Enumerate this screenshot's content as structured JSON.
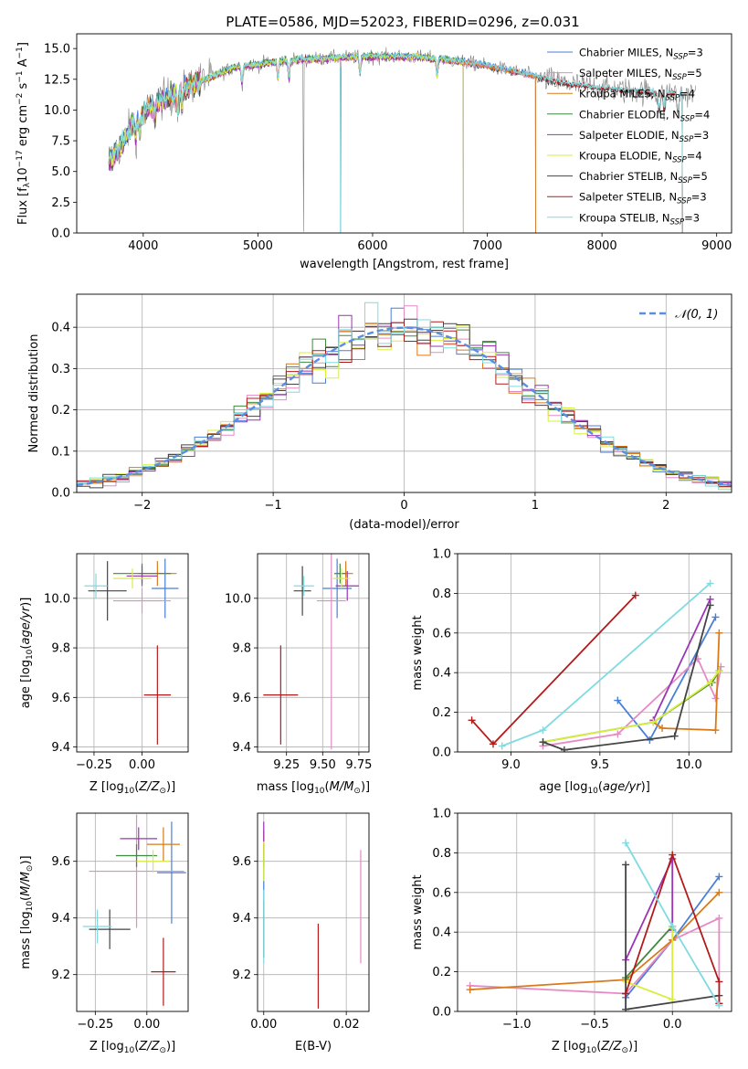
{
  "figure_title": "PLATE=0586, MJD=52023, FIBERID=0296, z=0.031",
  "colors": {
    "Chabrier MILES": "#4a7fd8",
    "Salpeter MILES": "#e68ac6",
    "Kroupa MILES": "#d97a1a",
    "Chabrier ELODIE": "#3f8a3f",
    "Salpeter ELODIE": "#9b34b5",
    "Kroupa ELODIE": "#d9ee3c",
    "Chabrier STELIB": "#444444",
    "Salpeter STELIB": "#b31b1b",
    "Kroupa STELIB": "#7fdbe0",
    "data": "#808080",
    "normal": "#5b8ee0"
  },
  "chart_data": [
    {
      "id": "spectrum",
      "type": "line",
      "title": "PLATE=0586, MJD=52023, FIBERID=0296, z=0.031",
      "xlabel": "wavelength [Angstrom, rest frame]",
      "ylabel": "Flux [f_λ10^-17 erg cm^-2 s^-1 A^-1]",
      "xlim": [
        3420,
        9130
      ],
      "ylim": [
        0,
        16.2
      ],
      "xticks": [
        4000,
        5000,
        6000,
        7000,
        8000,
        9000
      ],
      "yticks": [
        0.0,
        2.5,
        5.0,
        7.5,
        10.0,
        12.5,
        15.0
      ],
      "xtick_labels": [
        "4000",
        "5000",
        "6000",
        "7000",
        "8000",
        "9000"
      ],
      "ytick_labels": [
        "0.0",
        "2.5",
        "5.0",
        "7.5",
        "10.0",
        "12.5",
        "15.0"
      ],
      "legend_position": "upper right",
      "legend": [
        {
          "model": "Chabrier MILES",
          "label": "Chabrier MILES, N",
          "sub": "SSP",
          "suffix": "=3"
        },
        {
          "model": "Salpeter MILES",
          "label": "Salpeter MILES, N",
          "sub": "SSP",
          "suffix": "=5"
        },
        {
          "model": "Kroupa MILES",
          "label": "Kroupa MILES, N",
          "sub": "SSP",
          "suffix": "=4"
        },
        {
          "model": "Chabrier ELODIE",
          "label": "Chabrier ELODIE, N",
          "sub": "SSP",
          "suffix": "=4"
        },
        {
          "model": "Salpeter ELODIE",
          "label": "Salpeter ELODIE, N",
          "sub": "SSP",
          "suffix": "=3"
        },
        {
          "model": "Kroupa ELODIE",
          "label": "Kroupa ELODIE, N",
          "sub": "SSP",
          "suffix": "=4"
        },
        {
          "model": "Chabrier STELIB",
          "label": "Chabrier STELIB, N",
          "sub": "SSP",
          "suffix": "=5"
        },
        {
          "model": "Salpeter STELIB",
          "label": "Salpeter STELIB, N",
          "sub": "SSP",
          "suffix": "=3"
        },
        {
          "model": "Kroupa STELIB",
          "label": "Kroupa STELIB, N",
          "sub": "SSP",
          "suffix": "=3"
        }
      ],
      "continuum": {
        "x": [
          3700,
          3800,
          3900,
          4000,
          4100,
          4200,
          4300,
          4400,
          4500,
          4600,
          4700,
          4800,
          5000,
          5200,
          5400,
          5600,
          5800,
          6000,
          6200,
          6400,
          6600,
          6800,
          7000,
          7200,
          7400,
          7600,
          7800,
          8000,
          8200,
          8400,
          8600,
          8800
        ],
        "y": [
          5.8,
          7.0,
          8.8,
          9.6,
          10.6,
          11.0,
          11.3,
          12.1,
          12.3,
          12.7,
          13.1,
          13.5,
          13.7,
          14.0,
          14.1,
          14.2,
          14.3,
          14.35,
          14.35,
          14.3,
          14.15,
          13.9,
          13.6,
          13.2,
          12.8,
          12.3,
          12.0,
          11.8,
          11.6,
          11.5,
          11.4,
          11.3
        ]
      },
      "model_ranges": {
        "Kroupa MILES": [
          3700,
          7420
        ],
        "Salpeter MILES": [
          3700,
          7420
        ],
        "Chabrier MILES": [
          3700,
          7420
        ],
        "Chabrier ELODIE": [
          3700,
          6790
        ],
        "Salpeter ELODIE": [
          3700,
          6790
        ],
        "Kroupa ELODIE": [
          3700,
          6790
        ],
        "Chabrier STELIB": [
          3700,
          8700
        ],
        "Salpeter STELIB": [
          3700,
          8700
        ],
        "Kroupa STELIB": [
          3700,
          8700
        ]
      }
    },
    {
      "id": "residuals",
      "type": "histogram",
      "xlabel": "(data-model)/error",
      "ylabel": "Normed distribution",
      "xlim": [
        -2.5,
        2.5
      ],
      "ylim": [
        0,
        0.48
      ],
      "xticks": [
        -2,
        -1,
        0,
        1,
        2
      ],
      "yticks": [
        0.0,
        0.1,
        0.2,
        0.3,
        0.4
      ],
      "xtick_labels": [
        "−2",
        "−1",
        "0",
        "1",
        "2"
      ],
      "ytick_labels": [
        "0.0",
        "0.1",
        "0.2",
        "0.3",
        "0.4"
      ],
      "bins": [
        -2.5,
        2.5,
        50
      ],
      "legend_label": "𝒩(0, 1)",
      "legend_position": "upper right",
      "grid": true
    },
    {
      "id": "age_vs_Z",
      "type": "errorbar",
      "xlabel": "Z [log10(Z/Z☉)]",
      "ylabel": "age  [log10(age/yr)]",
      "xlim": [
        -0.34,
        0.24
      ],
      "ylim": [
        9.38,
        10.18
      ],
      "xticks": [
        -0.25,
        0.0
      ],
      "yticks": [
        9.4,
        9.6,
        9.8,
        10.0
      ],
      "xtick_labels": [
        "−0.25",
        "0.00"
      ],
      "ytick_labels": [
        "9.4",
        "9.6",
        "9.8",
        "10.0"
      ],
      "points": [
        {
          "model": "Chabrier MILES",
          "x": 0.12,
          "xerr": 0.07,
          "y": 10.04,
          "yerr": 0.12
        },
        {
          "model": "Salpeter MILES",
          "x": 0.0,
          "xerr": 0.15,
          "y": 9.99,
          "yerr": 0.05
        },
        {
          "model": "Kroupa MILES",
          "x": 0.08,
          "xerr": 0.1,
          "y": 10.1,
          "yerr": 0.05
        },
        {
          "model": "Chabrier ELODIE",
          "x": 0.0,
          "xerr": 0.15,
          "y": 10.1,
          "yerr": 0.04
        },
        {
          "model": "Salpeter ELODIE",
          "x": 0.0,
          "xerr": 0.08,
          "y": 10.09,
          "yerr": 0.04
        },
        {
          "model": "Kroupa ELODIE",
          "x": -0.05,
          "xerr": 0.1,
          "y": 10.08,
          "yerr": 0.04
        },
        {
          "model": "Chabrier STELIB",
          "x": -0.18,
          "xerr": 0.1,
          "y": 10.03,
          "yerr": 0.12
        },
        {
          "model": "Salpeter STELIB",
          "x": 0.08,
          "xerr": 0.07,
          "y": 9.61,
          "yerr": 0.2
        },
        {
          "model": "Kroupa STELIB",
          "x": -0.24,
          "xerr": 0.06,
          "y": 10.05,
          "yerr": 0.05
        }
      ]
    },
    {
      "id": "age_vs_mass",
      "type": "errorbar",
      "xlabel": "mass [log10(M/M☉)]",
      "ylabel": "",
      "xlim": [
        9.05,
        9.82
      ],
      "ylim": [
        9.38,
        10.18
      ],
      "xticks": [
        9.25,
        9.5,
        9.75
      ],
      "yticks": [
        9.4,
        9.6,
        9.8,
        10.0
      ],
      "xtick_labels": [
        "9.25",
        "9.50",
        "9.75"
      ],
      "ytick_labels": [
        "9.4",
        "9.6",
        "9.8",
        "10.0"
      ],
      "points": [
        {
          "model": "Chabrier MILES",
          "x": 9.6,
          "xerr": 0.1,
          "y": 10.04,
          "yerr": 0.12
        },
        {
          "model": "Salpeter MILES",
          "x": 9.56,
          "xerr": 0.1,
          "y": 9.99,
          "yerr": 0.6
        },
        {
          "model": "Kroupa MILES",
          "x": 9.66,
          "xerr": 0.05,
          "y": 10.1,
          "yerr": 0.05
        },
        {
          "model": "Chabrier ELODIE",
          "x": 9.62,
          "xerr": 0.04,
          "y": 10.1,
          "yerr": 0.04
        },
        {
          "model": "Salpeter ELODIE",
          "x": 9.67,
          "xerr": 0.08,
          "y": 10.05,
          "yerr": 0.06
        },
        {
          "model": "Kroupa ELODIE",
          "x": 9.63,
          "xerr": 0.06,
          "y": 10.08,
          "yerr": 0.04
        },
        {
          "model": "Chabrier STELIB",
          "x": 9.36,
          "xerr": 0.06,
          "y": 10.03,
          "yerr": 0.1
        },
        {
          "model": "Salpeter STELIB",
          "x": 9.21,
          "xerr": 0.12,
          "y": 9.61,
          "yerr": 0.2
        },
        {
          "model": "Kroupa STELIB",
          "x": 9.37,
          "xerr": 0.07,
          "y": 10.05,
          "yerr": 0.04
        }
      ]
    },
    {
      "id": "weight_vs_age",
      "type": "line",
      "xlabel": "age  [log10(age/yr)]",
      "ylabel": "mass weight",
      "xlim": [
        8.7,
        10.24
      ],
      "ylim": [
        0,
        1.0
      ],
      "xticks": [
        9.0,
        9.5,
        10.0
      ],
      "yticks": [
        0.0,
        0.2,
        0.4,
        0.6,
        0.8,
        1.0
      ],
      "xtick_labels": [
        "9.0",
        "9.5",
        "10.0"
      ],
      "ytick_labels": [
        "0.0",
        "0.2",
        "0.4",
        "0.6",
        "0.8",
        "1.0"
      ],
      "grid": true,
      "series": [
        {
          "model": "Chabrier MILES",
          "x": [
            9.6,
            9.78,
            10.15
          ],
          "y": [
            0.26,
            0.06,
            0.68
          ]
        },
        {
          "model": "Salpeter MILES",
          "x": [
            9.18,
            9.6,
            10.05,
            10.15,
            10.18
          ],
          "y": [
            0.03,
            0.09,
            0.47,
            0.27,
            0.43
          ]
        },
        {
          "model": "Kroupa MILES",
          "x": [
            9.8,
            9.85,
            10.15,
            10.17
          ],
          "y": [
            0.15,
            0.12,
            0.11,
            0.6
          ]
        },
        {
          "model": "Chabrier ELODIE",
          "x": [
            9.18,
            9.8,
            10.13,
            10.17
          ],
          "y": [
            0.05,
            0.15,
            0.35,
            0.41
          ]
        },
        {
          "model": "Salpeter ELODIE",
          "x": [
            9.8,
            10.12
          ],
          "y": [
            0.16,
            0.77
          ]
        },
        {
          "model": "Kroupa ELODIE",
          "x": [
            9.18,
            9.8,
            10.12,
            10.17
          ],
          "y": [
            0.05,
            0.15,
            0.35,
            0.41
          ]
        },
        {
          "model": "Chabrier STELIB",
          "x": [
            9.18,
            9.3,
            9.92,
            10.12
          ],
          "y": [
            0.05,
            0.01,
            0.08,
            0.74
          ]
        },
        {
          "model": "Salpeter STELIB",
          "x": [
            8.78,
            8.9,
            9.7
          ],
          "y": [
            0.16,
            0.04,
            0.79
          ]
        },
        {
          "model": "Kroupa STELIB",
          "x": [
            8.95,
            9.18,
            10.12
          ],
          "y": [
            0.03,
            0.11,
            0.85
          ]
        }
      ]
    },
    {
      "id": "mass_vs_Z",
      "type": "errorbar",
      "xlabel": "Z [log10(Z/Z☉)]",
      "ylabel": "mass [log10(M/M☉)]",
      "xlim": [
        -0.34,
        0.2
      ],
      "ylim": [
        9.07,
        9.77
      ],
      "xticks": [
        -0.25,
        0.0
      ],
      "yticks": [
        9.2,
        9.4,
        9.6
      ],
      "xtick_labels": [
        "−0.25",
        "0.00"
      ],
      "ytick_labels": [
        "9.2",
        "9.4",
        "9.6"
      ],
      "points": [
        {
          "model": "Chabrier MILES",
          "x": 0.12,
          "xerr": 0.07,
          "y": 9.56,
          "yerr": 0.18
        },
        {
          "model": "Salpeter MILES",
          "x": -0.05,
          "xerr": 0.23,
          "y": 9.565,
          "yerr": 0.2
        },
        {
          "model": "Kroupa MILES",
          "x": 0.08,
          "xerr": 0.08,
          "y": 9.66,
          "yerr": 0.06
        },
        {
          "model": "Chabrier ELODIE",
          "x": -0.05,
          "xerr": 0.1,
          "y": 9.62,
          "yerr": 0.04
        },
        {
          "model": "Salpeter ELODIE",
          "x": -0.04,
          "xerr": 0.09,
          "y": 9.68,
          "yerr": 0.04
        },
        {
          "model": "Kroupa ELODIE",
          "x": 0.03,
          "xerr": 0.08,
          "y": 9.6,
          "yerr": 0.04
        },
        {
          "model": "Chabrier STELIB",
          "x": -0.18,
          "xerr": 0.1,
          "y": 9.36,
          "yerr": 0.07
        },
        {
          "model": "Salpeter STELIB",
          "x": 0.08,
          "xerr": 0.06,
          "y": 9.21,
          "yerr": 0.12
        },
        {
          "model": "Kroupa STELIB",
          "x": -0.24,
          "xerr": 0.07,
          "y": 9.37,
          "yerr": 0.06
        }
      ]
    },
    {
      "id": "mass_vs_ebv",
      "type": "errorbar",
      "xlabel": "E(B-V)",
      "ylabel": "",
      "xlim": [
        -0.0015,
        0.0255
      ],
      "ylim": [
        9.07,
        9.77
      ],
      "xticks": [
        0.0,
        0.02
      ],
      "yticks": [
        9.2,
        9.4,
        9.6
      ],
      "xtick_labels": [
        "0.00",
        "0.02"
      ],
      "ytick_labels": [
        "9.2",
        "9.4",
        "9.6"
      ],
      "points": [
        {
          "model": "Chabrier MILES",
          "x": 0.0,
          "xerr": 0.0,
          "y": 9.56,
          "yerr": 0.1
        },
        {
          "model": "Salpeter MILES",
          "x": 0.0235,
          "xerr": 0.0,
          "y": 9.44,
          "yerr": 0.2
        },
        {
          "model": "Kroupa MILES",
          "x": 0.0,
          "xerr": 0.0,
          "y": 9.66,
          "yerr": 0.05
        },
        {
          "model": "Chabrier ELODIE",
          "x": 0.0,
          "xerr": 0.0,
          "y": 9.62,
          "yerr": 0.04
        },
        {
          "model": "Salpeter ELODIE",
          "x": 0.0,
          "xerr": 0.0,
          "y": 9.68,
          "yerr": 0.06
        },
        {
          "model": "Kroupa ELODIE",
          "x": 0.0,
          "xerr": 0.0,
          "y": 9.6,
          "yerr": 0.07
        },
        {
          "model": "Chabrier STELIB",
          "x": 0.0,
          "xerr": 0.0,
          "y": 9.36,
          "yerr": 0.1
        },
        {
          "model": "Salpeter STELIB",
          "x": 0.0132,
          "xerr": 0.0,
          "y": 9.23,
          "yerr": 0.15
        },
        {
          "model": "Kroupa STELIB",
          "x": 0.0,
          "xerr": 0.0,
          "y": 9.37,
          "yerr": 0.13
        }
      ]
    },
    {
      "id": "weight_vs_Z",
      "type": "line",
      "xlabel": "Z [log10(Z/Z☉)]",
      "ylabel": "mass weight",
      "xlim": [
        -1.38,
        0.38
      ],
      "ylim": [
        0,
        1.0
      ],
      "xticks": [
        -1.0,
        -0.5,
        0.0
      ],
      "yticks": [
        0.0,
        0.2,
        0.4,
        0.6,
        0.8,
        1.0
      ],
      "xtick_labels": [
        "−1.0",
        "−0.5",
        "0.0"
      ],
      "ytick_labels": [
        "0.0",
        "0.2",
        "0.4",
        "0.6",
        "0.8",
        "1.0"
      ],
      "grid": true,
      "series": [
        {
          "model": "Chabrier MILES",
          "x": [
            -0.3,
            0.0,
            0.3
          ],
          "y": [
            0.07,
            0.36,
            0.68
          ]
        },
        {
          "model": "Salpeter MILES",
          "x": [
            -1.3,
            -0.3,
            0.0,
            0.3,
            0.3
          ],
          "y": [
            0.13,
            0.09,
            0.36,
            0.47,
            0.04
          ]
        },
        {
          "model": "Kroupa MILES",
          "x": [
            -1.3,
            -0.3,
            0.0,
            0.3
          ],
          "y": [
            0.11,
            0.16,
            0.36,
            0.6
          ]
        },
        {
          "model": "Chabrier ELODIE",
          "x": [
            -0.3,
            0.0,
            0.0
          ],
          "y": [
            0.17,
            0.43,
            0.41
          ]
        },
        {
          "model": "Salpeter ELODIE",
          "x": [
            -0.3,
            0.0,
            0.0
          ],
          "y": [
            0.26,
            0.77,
            0.41
          ]
        },
        {
          "model": "Kroupa ELODIE",
          "x": [
            -0.3,
            0.0,
            0.0
          ],
          "y": [
            0.15,
            0.06,
            0.42
          ]
        },
        {
          "model": "Chabrier STELIB",
          "x": [
            -0.3,
            -0.3,
            -0.3,
            0.3
          ],
          "y": [
            0.74,
            0.09,
            0.01,
            0.08
          ]
        },
        {
          "model": "Salpeter STELIB",
          "x": [
            -0.3,
            0.0,
            0.3,
            0.3
          ],
          "y": [
            0.09,
            0.79,
            0.15,
            0.04
          ]
        },
        {
          "model": "Kroupa STELIB",
          "x": [
            -0.3,
            0.0,
            0.3
          ],
          "y": [
            0.85,
            0.43,
            0.03
          ]
        }
      ]
    }
  ]
}
